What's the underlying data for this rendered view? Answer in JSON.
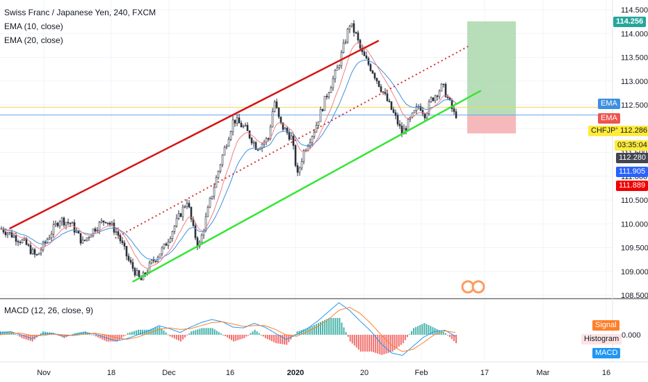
{
  "legend": {
    "symbol": "Swiss Franc / Japanese Yen, 240, FXCM",
    "ema10": "EMA (10, close)",
    "ema20": "EMA (20, close)",
    "macd": "MACD (12, 26, close, 9)"
  },
  "colors": {
    "up": "#26a69a",
    "down": "#ef5350",
    "candle": "#2a2e39",
    "ema_fast": "#f08080",
    "ema_slow": "#3d8fe0",
    "channel_top": "#d41414",
    "channel_bottom": "#33e633",
    "channel_mid": "#d32f2f",
    "macd_line": "#2196f3",
    "signal_line": "#ff7f28",
    "target_zone": "#a5d6a7",
    "stop_zone": "#f5b1b4"
  },
  "price_tags": {
    "target": "114.256",
    "ema_a": "EMA",
    "ema_b": "EMA",
    "symbol": "CHFJPY",
    "last": "112.286",
    "countdown": "03:35:04",
    "p1": "112.280",
    "p2": "111.905",
    "p3": "111.889"
  },
  "macd_tags": {
    "signal": "Signal",
    "histogram": "Histogram",
    "macd": "MACD",
    "zero": "0.000"
  },
  "chart_data": {
    "type": "candlestick",
    "symbol": "CHFJPY",
    "timeframe": "240",
    "y_axis_labels": [
      "114.500",
      "114.000",
      "113.500",
      "113.000",
      "112.500",
      "112.000",
      "111.500",
      "111.000",
      "110.500",
      "110.000",
      "109.500",
      "109.000",
      "108.500"
    ],
    "ylim": [
      108.5,
      114.6
    ],
    "x_axis_labels": [
      "Nov",
      "18",
      "Dec",
      "16",
      "2020",
      "20",
      "Feb",
      "17",
      "Mar",
      "16"
    ],
    "close_path": [
      [
        0,
        109.9
      ],
      [
        2,
        109.6
      ],
      [
        3,
        109.3
      ],
      [
        4,
        109.7
      ],
      [
        5,
        110.1
      ],
      [
        6,
        110.0
      ],
      [
        7,
        109.6
      ],
      [
        8,
        109.9
      ],
      [
        9,
        110.1
      ],
      [
        10,
        109.8
      ],
      [
        11,
        109.2
      ],
      [
        12,
        108.8
      ],
      [
        13,
        109.2
      ],
      [
        14,
        109.5
      ],
      [
        15,
        110.0
      ],
      [
        16,
        110.5
      ],
      [
        16.5,
        109.9
      ],
      [
        17,
        109.5
      ],
      [
        18,
        110.5
      ],
      [
        19,
        111.4
      ],
      [
        20,
        112.2
      ],
      [
        21,
        112.0
      ],
      [
        22,
        111.6
      ],
      [
        23,
        111.8
      ],
      [
        23.5,
        112.6
      ],
      [
        24,
        112.1
      ],
      [
        25,
        111.8
      ],
      [
        25.5,
        111.0
      ],
      [
        26,
        111.5
      ],
      [
        27,
        112.0
      ],
      [
        28,
        112.7
      ],
      [
        29,
        113.3
      ],
      [
        30,
        114.2
      ],
      [
        30.5,
        114.0
      ],
      [
        31,
        113.6
      ],
      [
        32,
        113.2
      ],
      [
        33,
        112.7
      ],
      [
        34,
        112.2
      ],
      [
        34.5,
        111.9
      ],
      [
        35,
        112.1
      ],
      [
        36,
        112.5
      ],
      [
        36.5,
        112.3
      ],
      [
        37,
        112.6
      ],
      [
        38,
        112.9
      ],
      [
        38.5,
        112.6
      ],
      [
        39,
        112.3
      ]
    ],
    "channel_top_line": [
      [
        0.7,
        109.9
      ],
      [
        32.5,
        113.85
      ]
    ],
    "channel_bottom_line": [
      [
        11.3,
        108.78
      ],
      [
        41.3,
        112.8
      ]
    ],
    "channel_mid_line": [
      [
        9.8,
        109.7
      ],
      [
        40.2,
        113.73
      ]
    ],
    "long_position": {
      "target": 114.256,
      "entry": 112.29,
      "stop": 111.9
    },
    "macd": {
      "zero": 0.0,
      "macd_line": [
        0.02,
        0.04,
        0.0,
        -0.05,
        0.01,
        0.02,
        -0.02,
        0.0,
        0.03,
        0.01,
        -0.04,
        -0.08,
        -0.05,
        0.0,
        0.05,
        0.12,
        0.08,
        0.03,
        0.1,
        0.16,
        0.2,
        0.17,
        0.1,
        0.09,
        0.15,
        0.1,
        0.02,
        -0.06,
        0.0,
        0.08,
        0.18,
        0.3,
        0.42,
        0.32,
        0.18,
        0.05,
        -0.12,
        -0.24,
        -0.27,
        -0.15,
        -0.03,
        0.04,
        0.06,
        -0.02
      ],
      "signal_line": [
        0.0,
        0.02,
        0.02,
        -0.01,
        -0.01,
        0.01,
        0.0,
        -0.01,
        0.01,
        0.02,
        0.0,
        -0.04,
        -0.06,
        -0.03,
        0.02,
        0.07,
        0.09,
        0.07,
        0.08,
        0.12,
        0.16,
        0.17,
        0.14,
        0.11,
        0.12,
        0.12,
        0.07,
        0.0,
        -0.02,
        0.04,
        0.11,
        0.2,
        0.32,
        0.36,
        0.28,
        0.15,
        0.0,
        -0.14,
        -0.22,
        -0.19,
        -0.1,
        0.0,
        0.05,
        0.03
      ]
    }
  }
}
